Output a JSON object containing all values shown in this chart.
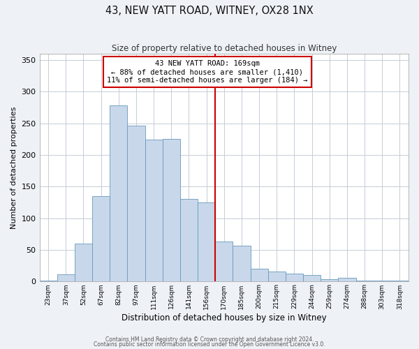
{
  "title": "43, NEW YATT ROAD, WITNEY, OX28 1NX",
  "subtitle": "Size of property relative to detached houses in Witney",
  "xlabel": "Distribution of detached houses by size in Witney",
  "ylabel": "Number of detached properties",
  "bar_labels": [
    "23sqm",
    "37sqm",
    "52sqm",
    "67sqm",
    "82sqm",
    "97sqm",
    "111sqm",
    "126sqm",
    "141sqm",
    "156sqm",
    "170sqm",
    "185sqm",
    "200sqm",
    "215sqm",
    "229sqm",
    "244sqm",
    "259sqm",
    "274sqm",
    "288sqm",
    "303sqm",
    "318sqm"
  ],
  "bar_values": [
    2,
    11,
    60,
    135,
    278,
    246,
    224,
    225,
    131,
    125,
    63,
    57,
    20,
    16,
    13,
    10,
    4,
    6,
    1,
    1,
    1
  ],
  "bar_color": "#c8d8ea",
  "bar_edge_color": "#6699bb",
  "vline_x": 9.5,
  "vline_color": "#cc0000",
  "ylim": [
    0,
    360
  ],
  "yticks": [
    0,
    50,
    100,
    150,
    200,
    250,
    300,
    350
  ],
  "annotation_title": "43 NEW YATT ROAD: 169sqm",
  "annotation_line1": "← 88% of detached houses are smaller (1,410)",
  "annotation_line2": "11% of semi-detached houses are larger (184) →",
  "annotation_box_color": "#ffffff",
  "annotation_box_edge": "#cc0000",
  "footnote1": "Contains HM Land Registry data © Crown copyright and database right 2024.",
  "footnote2": "Contains public sector information licensed under the Open Government Licence v3.0.",
  "bg_color": "#eef2f7",
  "plot_bg_color": "#ffffff",
  "grid_color": "#c5cdd8"
}
